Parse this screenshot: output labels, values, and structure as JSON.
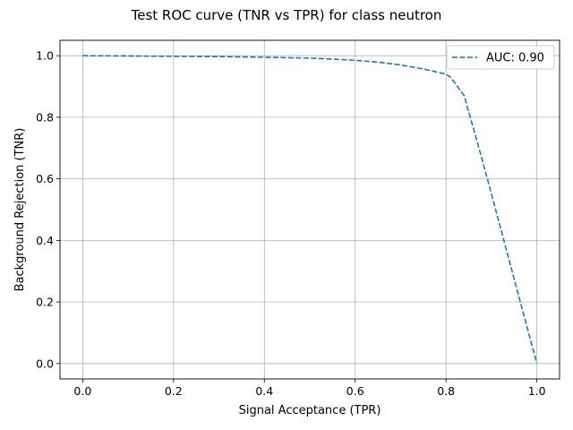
{
  "chart_data": {
    "type": "line",
    "title": "Test ROC curve (TNR vs TPR) for class neutron",
    "xlabel": "Signal Acceptance (TPR)",
    "ylabel": "Background Rejection (TNR)",
    "xlim": [
      -0.05,
      1.05
    ],
    "ylim": [
      -0.05,
      1.05
    ],
    "xticks": [
      "0.0",
      "0.2",
      "0.4",
      "0.6",
      "0.8",
      "1.0"
    ],
    "yticks": [
      "0.0",
      "0.2",
      "0.4",
      "0.6",
      "0.8",
      "1.0"
    ],
    "grid": true,
    "legend_position": "top-right",
    "series": [
      {
        "name": "AUC: 0.90",
        "color": "#1f77b4",
        "line_style": "dashed",
        "x": [
          0.0,
          0.1,
          0.2,
          0.3,
          0.4,
          0.5,
          0.55,
          0.6,
          0.65,
          0.7,
          0.75,
          0.8,
          0.81,
          0.84,
          0.88,
          0.92,
          0.96,
          1.0
        ],
        "y": [
          1.0,
          0.999,
          0.998,
          0.997,
          0.995,
          0.992,
          0.989,
          0.985,
          0.979,
          0.97,
          0.957,
          0.94,
          0.93,
          0.87,
          0.66,
          0.44,
          0.22,
          0.0
        ]
      }
    ]
  }
}
